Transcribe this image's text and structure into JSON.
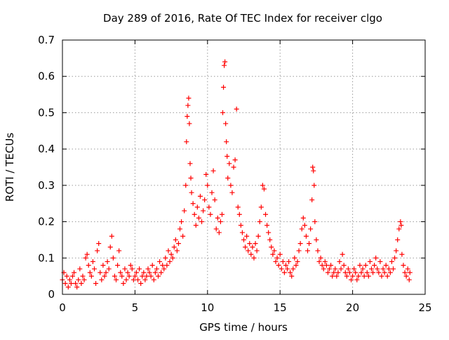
{
  "chart_data": {
    "type": "scatter",
    "title": "Day 289 of 2016, Rate Of TEC Index for receiver clgo",
    "xlabel": "GPS time / hours",
    "ylabel": "ROTI / TECUs",
    "xlim": [
      0,
      25
    ],
    "ylim": [
      0,
      0.7
    ],
    "xticks": [
      0,
      5,
      10,
      15,
      20,
      25
    ],
    "yticks": [
      0,
      0.1,
      0.2,
      0.3,
      0.4,
      0.5,
      0.6,
      0.7
    ],
    "xtick_labels": [
      "0",
      "5",
      "10",
      "15",
      "20",
      "25"
    ],
    "ytick_labels": [
      "0",
      "0.1",
      "0.2",
      "0.3",
      "0.4",
      "0.5",
      "0.6",
      "0.7"
    ],
    "grid": true,
    "marker": "+",
    "color": "#ff0000",
    "series": [
      {
        "name": "ROTI",
        "points": [
          [
            0.0,
            0.04
          ],
          [
            0.1,
            0.06
          ],
          [
            0.2,
            0.03
          ],
          [
            0.3,
            0.05
          ],
          [
            0.4,
            0.02
          ],
          [
            0.5,
            0.04
          ],
          [
            0.6,
            0.03
          ],
          [
            0.7,
            0.05
          ],
          [
            0.8,
            0.06
          ],
          [
            0.9,
            0.03
          ],
          [
            1.0,
            0.02
          ],
          [
            1.1,
            0.04
          ],
          [
            1.2,
            0.07
          ],
          [
            1.3,
            0.03
          ],
          [
            1.4,
            0.05
          ],
          [
            1.5,
            0.04
          ],
          [
            1.6,
            0.1
          ],
          [
            1.7,
            0.11
          ],
          [
            1.8,
            0.08
          ],
          [
            1.9,
            0.06
          ],
          [
            2.0,
            0.05
          ],
          [
            2.1,
            0.09
          ],
          [
            2.2,
            0.07
          ],
          [
            2.3,
            0.03
          ],
          [
            2.4,
            0.12
          ],
          [
            2.5,
            0.14
          ],
          [
            2.6,
            0.06
          ],
          [
            2.7,
            0.04
          ],
          [
            2.8,
            0.08
          ],
          [
            2.9,
            0.05
          ],
          [
            3.0,
            0.06
          ],
          [
            3.1,
            0.09
          ],
          [
            3.2,
            0.07
          ],
          [
            3.3,
            0.13
          ],
          [
            3.4,
            0.16
          ],
          [
            3.5,
            0.1
          ],
          [
            3.6,
            0.05
          ],
          [
            3.7,
            0.04
          ],
          [
            3.8,
            0.08
          ],
          [
            3.9,
            0.12
          ],
          [
            4.0,
            0.06
          ],
          [
            4.1,
            0.05
          ],
          [
            4.2,
            0.03
          ],
          [
            4.3,
            0.07
          ],
          [
            4.4,
            0.04
          ],
          [
            4.5,
            0.06
          ],
          [
            4.6,
            0.05
          ],
          [
            4.7,
            0.08
          ],
          [
            4.8,
            0.07
          ],
          [
            4.9,
            0.04
          ],
          [
            5.0,
            0.05
          ],
          [
            5.1,
            0.06
          ],
          [
            5.2,
            0.04
          ],
          [
            5.3,
            0.07
          ],
          [
            5.4,
            0.03
          ],
          [
            5.5,
            0.05
          ],
          [
            5.6,
            0.06
          ],
          [
            5.7,
            0.04
          ],
          [
            5.8,
            0.05
          ],
          [
            5.9,
            0.07
          ],
          [
            6.0,
            0.06
          ],
          [
            6.1,
            0.05
          ],
          [
            6.2,
            0.08
          ],
          [
            6.3,
            0.04
          ],
          [
            6.4,
            0.06
          ],
          [
            6.5,
            0.07
          ],
          [
            6.6,
            0.05
          ],
          [
            6.7,
            0.09
          ],
          [
            6.8,
            0.06
          ],
          [
            6.9,
            0.08
          ],
          [
            7.0,
            0.07
          ],
          [
            7.1,
            0.1
          ],
          [
            7.2,
            0.08
          ],
          [
            7.3,
            0.12
          ],
          [
            7.4,
            0.09
          ],
          [
            7.5,
            0.11
          ],
          [
            7.6,
            0.1
          ],
          [
            7.7,
            0.13
          ],
          [
            7.8,
            0.15
          ],
          [
            7.9,
            0.12
          ],
          [
            8.0,
            0.14
          ],
          [
            8.1,
            0.18
          ],
          [
            8.2,
            0.2
          ],
          [
            8.3,
            0.16
          ],
          [
            8.4,
            0.23
          ],
          [
            8.5,
            0.3
          ],
          [
            8.55,
            0.42
          ],
          [
            8.6,
            0.49
          ],
          [
            8.65,
            0.52
          ],
          [
            8.7,
            0.54
          ],
          [
            8.75,
            0.47
          ],
          [
            8.8,
            0.36
          ],
          [
            8.85,
            0.32
          ],
          [
            8.9,
            0.28
          ],
          [
            9.0,
            0.25
          ],
          [
            9.1,
            0.22
          ],
          [
            9.2,
            0.19
          ],
          [
            9.3,
            0.24
          ],
          [
            9.4,
            0.21
          ],
          [
            9.5,
            0.27
          ],
          [
            9.6,
            0.2
          ],
          [
            9.7,
            0.23
          ],
          [
            9.8,
            0.26
          ],
          [
            9.9,
            0.33
          ],
          [
            10.0,
            0.3
          ],
          [
            10.1,
            0.24
          ],
          [
            10.2,
            0.22
          ],
          [
            10.3,
            0.28
          ],
          [
            10.4,
            0.34
          ],
          [
            10.5,
            0.26
          ],
          [
            10.6,
            0.18
          ],
          [
            10.7,
            0.21
          ],
          [
            10.8,
            0.17
          ],
          [
            10.9,
            0.2
          ],
          [
            11.0,
            0.22
          ],
          [
            11.05,
            0.5
          ],
          [
            11.1,
            0.57
          ],
          [
            11.15,
            0.63
          ],
          [
            11.2,
            0.64
          ],
          [
            11.25,
            0.47
          ],
          [
            11.3,
            0.42
          ],
          [
            11.35,
            0.38
          ],
          [
            11.4,
            0.32
          ],
          [
            11.5,
            0.36
          ],
          [
            11.6,
            0.3
          ],
          [
            11.7,
            0.28
          ],
          [
            11.8,
            0.35
          ],
          [
            11.9,
            0.37
          ],
          [
            12.0,
            0.51
          ],
          [
            12.1,
            0.24
          ],
          [
            12.2,
            0.22
          ],
          [
            12.3,
            0.19
          ],
          [
            12.4,
            0.17
          ],
          [
            12.5,
            0.15
          ],
          [
            12.6,
            0.13
          ],
          [
            12.7,
            0.16
          ],
          [
            12.8,
            0.12
          ],
          [
            12.9,
            0.14
          ],
          [
            13.0,
            0.11
          ],
          [
            13.1,
            0.13
          ],
          [
            13.2,
            0.1
          ],
          [
            13.3,
            0.14
          ],
          [
            13.4,
            0.12
          ],
          [
            13.5,
            0.16
          ],
          [
            13.6,
            0.2
          ],
          [
            13.7,
            0.24
          ],
          [
            13.8,
            0.3
          ],
          [
            13.9,
            0.29
          ],
          [
            14.0,
            0.22
          ],
          [
            14.1,
            0.19
          ],
          [
            14.2,
            0.17
          ],
          [
            14.3,
            0.15
          ],
          [
            14.4,
            0.13
          ],
          [
            14.5,
            0.11
          ],
          [
            14.6,
            0.12
          ],
          [
            14.7,
            0.09
          ],
          [
            14.8,
            0.1
          ],
          [
            14.9,
            0.08
          ],
          [
            15.0,
            0.11
          ],
          [
            15.1,
            0.07
          ],
          [
            15.2,
            0.09
          ],
          [
            15.3,
            0.06
          ],
          [
            15.4,
            0.08
          ],
          [
            15.5,
            0.07
          ],
          [
            15.6,
            0.09
          ],
          [
            15.7,
            0.06
          ],
          [
            15.8,
            0.05
          ],
          [
            15.9,
            0.07
          ],
          [
            16.0,
            0.1
          ],
          [
            16.1,
            0.08
          ],
          [
            16.2,
            0.09
          ],
          [
            16.3,
            0.12
          ],
          [
            16.4,
            0.14
          ],
          [
            16.5,
            0.18
          ],
          [
            16.6,
            0.21
          ],
          [
            16.7,
            0.19
          ],
          [
            16.8,
            0.16
          ],
          [
            16.9,
            0.12
          ],
          [
            17.0,
            0.14
          ],
          [
            17.1,
            0.18
          ],
          [
            17.2,
            0.26
          ],
          [
            17.25,
            0.35
          ],
          [
            17.3,
            0.34
          ],
          [
            17.35,
            0.3
          ],
          [
            17.4,
            0.2
          ],
          [
            17.5,
            0.15
          ],
          [
            17.6,
            0.12
          ],
          [
            17.7,
            0.09
          ],
          [
            17.8,
            0.1
          ],
          [
            17.9,
            0.08
          ],
          [
            18.0,
            0.07
          ],
          [
            18.1,
            0.09
          ],
          [
            18.2,
            0.08
          ],
          [
            18.3,
            0.06
          ],
          [
            18.4,
            0.07
          ],
          [
            18.5,
            0.08
          ],
          [
            18.6,
            0.05
          ],
          [
            18.7,
            0.06
          ],
          [
            18.8,
            0.07
          ],
          [
            18.9,
            0.05
          ],
          [
            19.0,
            0.06
          ],
          [
            19.1,
            0.09
          ],
          [
            19.2,
            0.07
          ],
          [
            19.3,
            0.11
          ],
          [
            19.4,
            0.08
          ],
          [
            19.5,
            0.06
          ],
          [
            19.6,
            0.05
          ],
          [
            19.7,
            0.07
          ],
          [
            19.8,
            0.06
          ],
          [
            19.9,
            0.04
          ],
          [
            20.0,
            0.05
          ],
          [
            20.1,
            0.07
          ],
          [
            20.2,
            0.06
          ],
          [
            20.3,
            0.04
          ],
          [
            20.4,
            0.05
          ],
          [
            20.5,
            0.08
          ],
          [
            20.6,
            0.06
          ],
          [
            20.7,
            0.07
          ],
          [
            20.8,
            0.05
          ],
          [
            20.9,
            0.08
          ],
          [
            21.0,
            0.06
          ],
          [
            21.1,
            0.05
          ],
          [
            21.2,
            0.09
          ],
          [
            21.3,
            0.07
          ],
          [
            21.4,
            0.06
          ],
          [
            21.5,
            0.08
          ],
          [
            21.6,
            0.1
          ],
          [
            21.7,
            0.07
          ],
          [
            21.8,
            0.06
          ],
          [
            21.9,
            0.09
          ],
          [
            22.0,
            0.05
          ],
          [
            22.1,
            0.07
          ],
          [
            22.2,
            0.06
          ],
          [
            22.3,
            0.08
          ],
          [
            22.4,
            0.05
          ],
          [
            22.5,
            0.07
          ],
          [
            22.6,
            0.06
          ],
          [
            22.7,
            0.09
          ],
          [
            22.8,
            0.07
          ],
          [
            22.9,
            0.1
          ],
          [
            23.0,
            0.12
          ],
          [
            23.1,
            0.15
          ],
          [
            23.2,
            0.18
          ],
          [
            23.3,
            0.2
          ],
          [
            23.35,
            0.19
          ],
          [
            23.4,
            0.11
          ],
          [
            23.5,
            0.08
          ],
          [
            23.6,
            0.06
          ],
          [
            23.7,
            0.05
          ],
          [
            23.8,
            0.07
          ],
          [
            23.9,
            0.04
          ],
          [
            23.95,
            0.06
          ]
        ]
      }
    ]
  }
}
